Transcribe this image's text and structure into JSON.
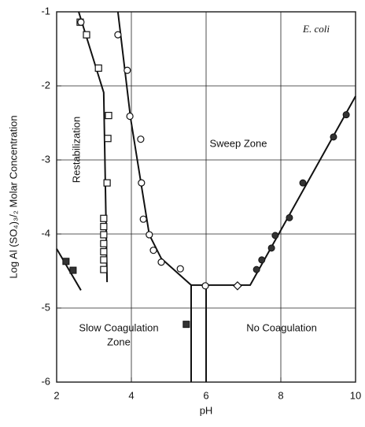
{
  "chart_data": {
    "type": "scatter",
    "xlabel": "pH",
    "ylabel": "Log Al (SO₄)₃/₂ Molar Concentration",
    "xlim": [
      2,
      10
    ],
    "ylim": [
      -6,
      -1
    ],
    "xticks": [
      2,
      4,
      6,
      8,
      10
    ],
    "yticks": [
      -1,
      -2,
      -3,
      -4,
      -5,
      -6
    ],
    "grid": true,
    "color": "#111111",
    "series": [
      {
        "marker": "open-square",
        "x": [
          2.63,
          2.8,
          3.12,
          3.39,
          3.37,
          3.35,
          3.26,
          3.26,
          3.26,
          3.26,
          3.26,
          3.26,
          3.26
        ],
        "values": [
          -1.14,
          -1.31,
          -1.76,
          -2.4,
          -2.71,
          -3.31,
          -3.79,
          -3.9,
          -4.01,
          -4.13,
          -4.24,
          -4.35,
          -4.48
        ]
      },
      {
        "marker": "open-circle",
        "x": [
          2.65,
          3.64,
          3.89,
          3.96,
          4.25,
          4.27,
          4.32,
          4.48,
          4.59,
          4.8,
          5.31,
          5.98
        ],
        "values": [
          -1.14,
          -1.31,
          -1.79,
          -2.41,
          -2.72,
          -3.31,
          -3.8,
          -4.01,
          -4.22,
          -4.38,
          -4.47,
          -4.7
        ]
      },
      {
        "marker": "filled-circle",
        "x": [
          7.35,
          7.49,
          7.75,
          7.85,
          8.23,
          8.59,
          9.41,
          9.75
        ],
        "values": [
          -4.48,
          -4.35,
          -4.19,
          -4.02,
          -3.78,
          -3.31,
          -2.69,
          -2.39
        ]
      },
      {
        "marker": "open-diamond",
        "x": [
          6.84
        ],
        "values": [
          -4.7
        ]
      },
      {
        "marker": "filled-square",
        "x": [
          2.25,
          2.44,
          5.47
        ],
        "values": [
          -4.37,
          -4.49,
          -5.22
        ]
      }
    ],
    "lines": [
      {
        "x": [
          2.59,
          3.26,
          3.35
        ],
        "values": [
          -1,
          -2.09,
          -4.65
        ]
      },
      {
        "x": [
          3.64,
          3.98,
          4.48,
          4.8,
          5.6,
          7.18,
          10
        ],
        "values": [
          -1,
          -2.44,
          -4.01,
          -4.33,
          -4.69,
          -4.69,
          -2.14
        ]
      },
      {
        "x": [
          5.6,
          5.6
        ],
        "values": [
          -4.69,
          -6
        ]
      },
      {
        "x": [
          6.0,
          6.0
        ],
        "values": [
          -4.69,
          -6
        ]
      },
      {
        "x": [
          2,
          2.65
        ],
        "values": [
          -4.2,
          -4.76
        ]
      }
    ],
    "annotations": {
      "organism": "E. coli",
      "restabilization": "Restabilization",
      "sweep": "Sweep Zone",
      "slow": [
        "Slow Coagulation",
        "Zone"
      ],
      "none": "No Coagulation"
    }
  }
}
